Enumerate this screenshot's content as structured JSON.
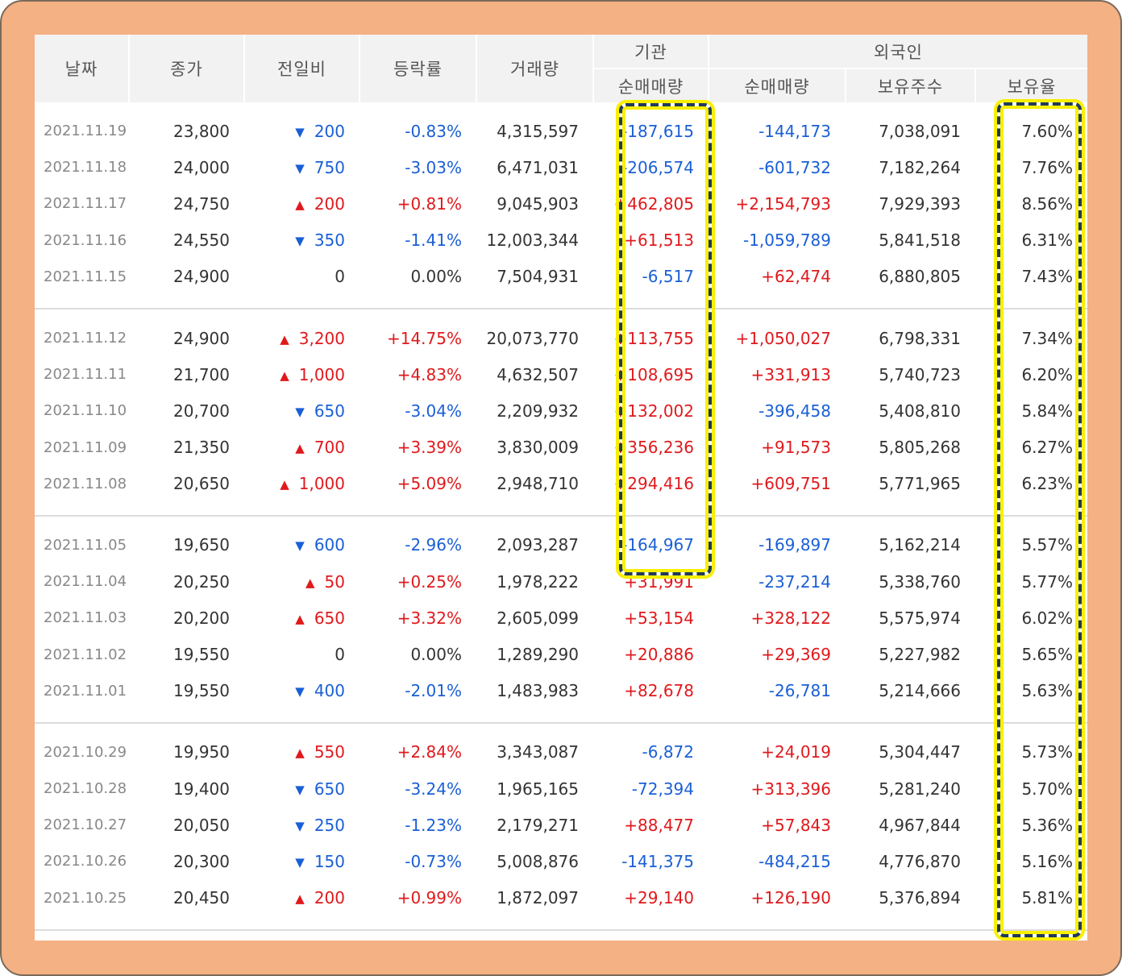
{
  "headers": {
    "date": "날짜",
    "close": "종가",
    "change": "전일비",
    "rate": "등락률",
    "volume": "거래량",
    "institution": "기관",
    "inst_net": "순매매량",
    "foreign": "외국인",
    "foreign_net": "순매매량",
    "foreign_hold": "보유주수",
    "foreign_ratio": "보유율"
  },
  "colors": {
    "up": "#e0191c",
    "down": "#1a5fd6",
    "highlight": "#f8f000",
    "frame": "#f4b183"
  },
  "icons": {
    "up": "up-triangle-icon",
    "down": "down-triangle-icon"
  },
  "groups": [
    {
      "rows": [
        {
          "date": "2021.11.19",
          "close": "23,800",
          "dir": "down",
          "change": "200",
          "rate": "-0.83%",
          "volume": "4,315,597",
          "inst": "-187,615",
          "foreign": "-144,173",
          "hold": "7,038,091",
          "ratio": "7.60%"
        },
        {
          "date": "2021.11.18",
          "close": "24,000",
          "dir": "down",
          "change": "750",
          "rate": "-3.03%",
          "volume": "6,471,031",
          "inst": "-206,574",
          "foreign": "-601,732",
          "hold": "7,182,264",
          "ratio": "7.76%"
        },
        {
          "date": "2021.11.17",
          "close": "24,750",
          "dir": "up",
          "change": "200",
          "rate": "+0.81%",
          "volume": "9,045,903",
          "inst": "+462,805",
          "foreign": "+2,154,793",
          "hold": "7,929,393",
          "ratio": "8.56%"
        },
        {
          "date": "2021.11.16",
          "close": "24,550",
          "dir": "down",
          "change": "350",
          "rate": "-1.41%",
          "volume": "12,003,344",
          "inst": "+61,513",
          "foreign": "-1,059,789",
          "hold": "5,841,518",
          "ratio": "6.31%"
        },
        {
          "date": "2021.11.15",
          "close": "24,900",
          "dir": "none",
          "change": "0",
          "rate": "0.00%",
          "volume": "7,504,931",
          "inst": "-6,517",
          "foreign": "+62,474",
          "hold": "6,880,805",
          "ratio": "7.43%"
        }
      ]
    },
    {
      "rows": [
        {
          "date": "2021.11.12",
          "close": "24,900",
          "dir": "up",
          "change": "3,200",
          "rate": "+14.75%",
          "volume": "20,073,770",
          "inst": "+113,755",
          "foreign": "+1,050,027",
          "hold": "6,798,331",
          "ratio": "7.34%"
        },
        {
          "date": "2021.11.11",
          "close": "21,700",
          "dir": "up",
          "change": "1,000",
          "rate": "+4.83%",
          "volume": "4,632,507",
          "inst": "+108,695",
          "foreign": "+331,913",
          "hold": "5,740,723",
          "ratio": "6.20%"
        },
        {
          "date": "2021.11.10",
          "close": "20,700",
          "dir": "down",
          "change": "650",
          "rate": "-3.04%",
          "volume": "2,209,932",
          "inst": "+132,002",
          "foreign": "-396,458",
          "hold": "5,408,810",
          "ratio": "5.84%"
        },
        {
          "date": "2021.11.09",
          "close": "21,350",
          "dir": "up",
          "change": "700",
          "rate": "+3.39%",
          "volume": "3,830,009",
          "inst": "+356,236",
          "foreign": "+91,573",
          "hold": "5,805,268",
          "ratio": "6.27%"
        },
        {
          "date": "2021.11.08",
          "close": "20,650",
          "dir": "up",
          "change": "1,000",
          "rate": "+5.09%",
          "volume": "2,948,710",
          "inst": "+294,416",
          "foreign": "+609,751",
          "hold": "5,771,965",
          "ratio": "6.23%"
        }
      ]
    },
    {
      "rows": [
        {
          "date": "2021.11.05",
          "close": "19,650",
          "dir": "down",
          "change": "600",
          "rate": "-2.96%",
          "volume": "2,093,287",
          "inst": "-164,967",
          "foreign": "-169,897",
          "hold": "5,162,214",
          "ratio": "5.57%"
        },
        {
          "date": "2021.11.04",
          "close": "20,250",
          "dir": "up",
          "change": "50",
          "rate": "+0.25%",
          "volume": "1,978,222",
          "inst": "+31,991",
          "foreign": "-237,214",
          "hold": "5,338,760",
          "ratio": "5.77%"
        },
        {
          "date": "2021.11.03",
          "close": "20,200",
          "dir": "up",
          "change": "650",
          "rate": "+3.32%",
          "volume": "2,605,099",
          "inst": "+53,154",
          "foreign": "+328,122",
          "hold": "5,575,974",
          "ratio": "6.02%"
        },
        {
          "date": "2021.11.02",
          "close": "19,550",
          "dir": "none",
          "change": "0",
          "rate": "0.00%",
          "volume": "1,289,290",
          "inst": "+20,886",
          "foreign": "+29,369",
          "hold": "5,227,982",
          "ratio": "5.65%"
        },
        {
          "date": "2021.11.01",
          "close": "19,550",
          "dir": "down",
          "change": "400",
          "rate": "-2.01%",
          "volume": "1,483,983",
          "inst": "+82,678",
          "foreign": "-26,781",
          "hold": "5,214,666",
          "ratio": "5.63%"
        }
      ]
    },
    {
      "rows": [
        {
          "date": "2021.10.29",
          "close": "19,950",
          "dir": "up",
          "change": "550",
          "rate": "+2.84%",
          "volume": "3,343,087",
          "inst": "-6,872",
          "foreign": "+24,019",
          "hold": "5,304,447",
          "ratio": "5.73%"
        },
        {
          "date": "2021.10.28",
          "close": "19,400",
          "dir": "down",
          "change": "650",
          "rate": "-3.24%",
          "volume": "1,965,165",
          "inst": "-72,394",
          "foreign": "+313,396",
          "hold": "5,281,240",
          "ratio": "5.70%"
        },
        {
          "date": "2021.10.27",
          "close": "20,050",
          "dir": "down",
          "change": "250",
          "rate": "-1.23%",
          "volume": "2,179,271",
          "inst": "+88,477",
          "foreign": "+57,843",
          "hold": "4,967,844",
          "ratio": "5.36%"
        },
        {
          "date": "2021.10.26",
          "close": "20,300",
          "dir": "down",
          "change": "150",
          "rate": "-0.73%",
          "volume": "5,008,876",
          "inst": "-141,375",
          "foreign": "-484,215",
          "hold": "4,776,870",
          "ratio": "5.16%"
        },
        {
          "date": "2021.10.25",
          "close": "20,450",
          "dir": "up",
          "change": "200",
          "rate": "+0.99%",
          "volume": "1,872,097",
          "inst": "+29,140",
          "foreign": "+126,190",
          "hold": "5,376,894",
          "ratio": "5.81%"
        }
      ]
    }
  ]
}
